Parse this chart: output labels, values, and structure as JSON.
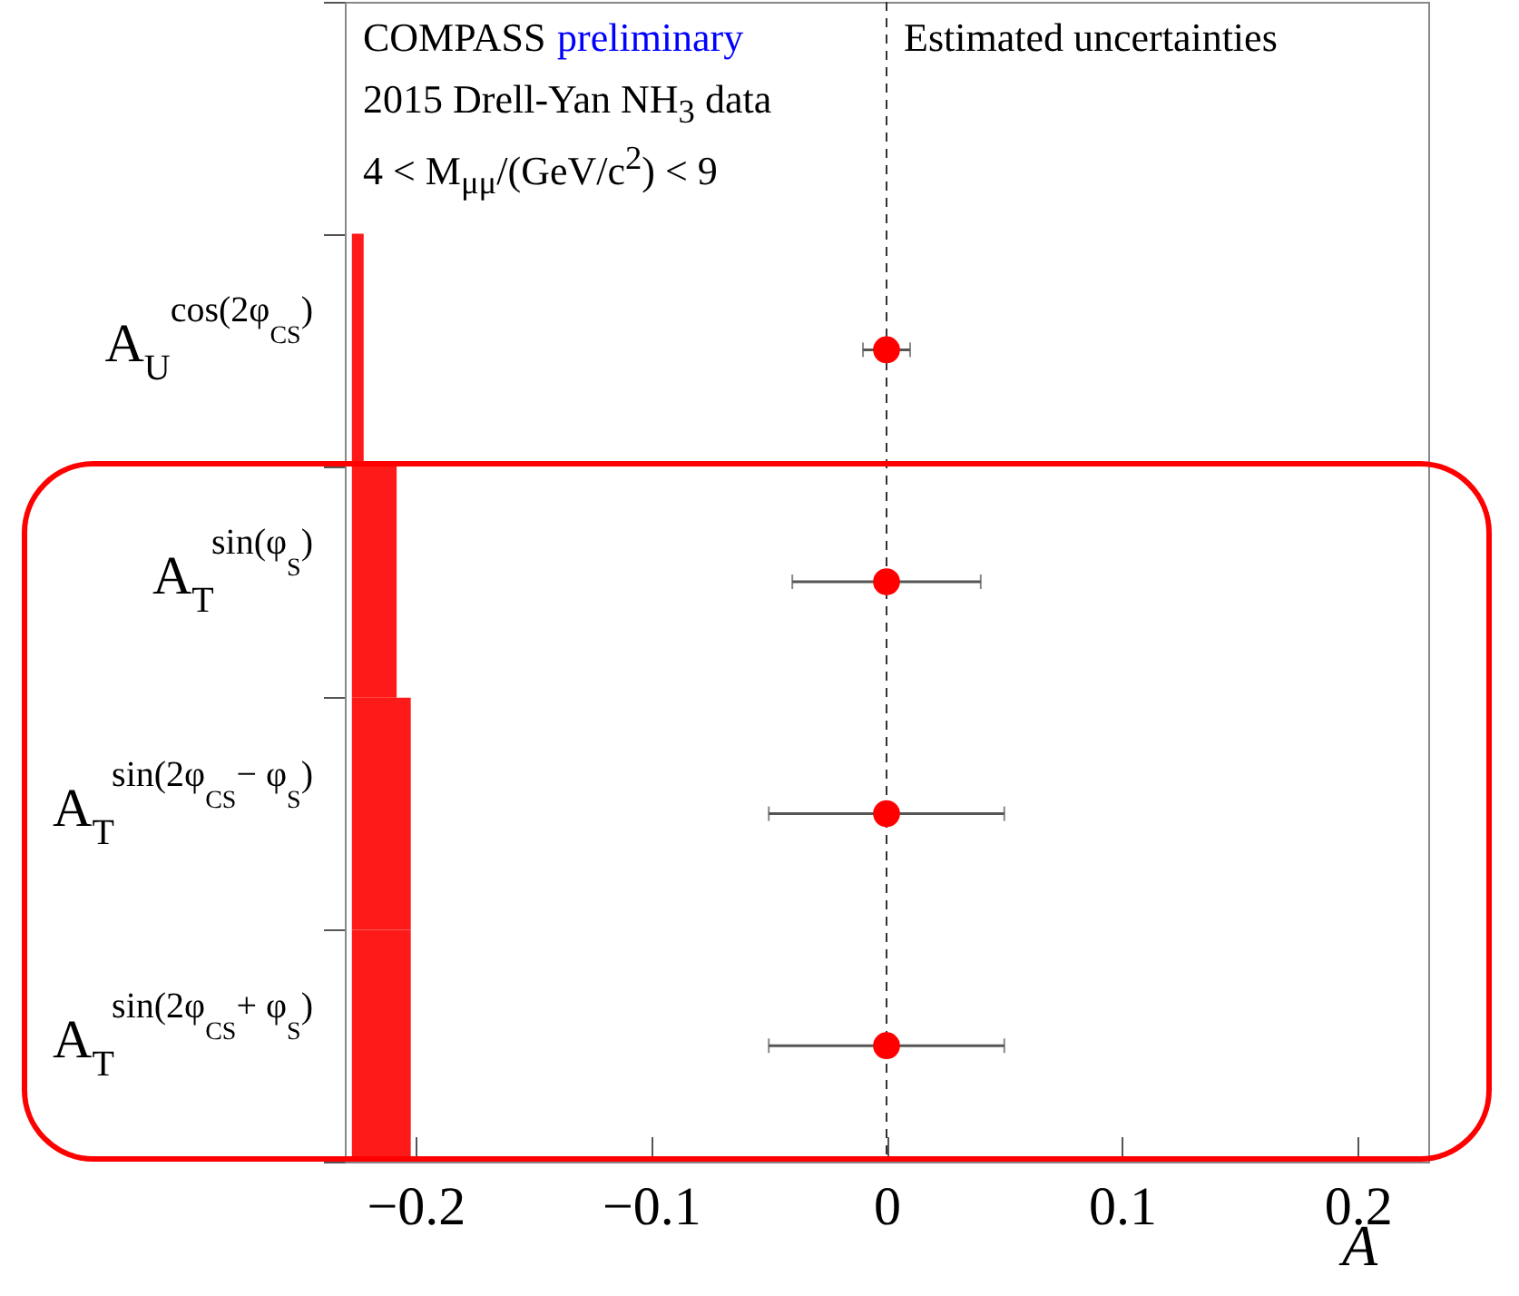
{
  "chart_data": {
    "type": "bar",
    "orientation": "horizontal",
    "annotations": [
      "COMPASS",
      "preliminary",
      "2015 Drell-Yan NH$_{3}$ data",
      "4 < M$_{μμ}$/(GeV/c$^{2}$) < 9",
      "Estimated uncertainties"
    ],
    "xlabel": "A",
    "categories": [
      null,
      "A$_{U}$$^{cos(2φ}$$_{CS}$$^{)}$",
      "A$_{T}$$^{sin(φ}$$_{S}$$^{)}$",
      "A$_{T}$$^{sin(2φ}$$_{CS}$$^{− φ}$$_{S}$$^{)}$",
      "A$_{T}$$^{sin(2φ}$$_{CS}$$^{+ φ}$$_{S}$$^{)}$"
    ],
    "series": [
      {
        "type": "bar",
        "color": "#ff1a1a",
        "base": [
          null,
          -0.227,
          -0.227,
          -0.227,
          -0.227
        ],
        "values": [
          null,
          0.005,
          0.019,
          0.025,
          0.025
        ]
      },
      {
        "type": "scatter",
        "color": "#ff0000",
        "values": [
          null,
          0,
          0,
          0,
          0
        ],
        "errors": [
          null,
          0.01,
          0.04,
          0.05,
          0.05
        ]
      }
    ],
    "xlim": [
      -0.23,
      0.23
    ],
    "xticks": [
      {
        "value": -0.2,
        "label": "−0.2"
      },
      {
        "value": -0.1,
        "label": "−0.1"
      },
      0,
      0.1,
      0.2
    ],
    "ref_lines": [
      {
        "axis": "x",
        "value": 0,
        "line_style": "dashed"
      }
    ],
    "marker": "circle"
  }
}
